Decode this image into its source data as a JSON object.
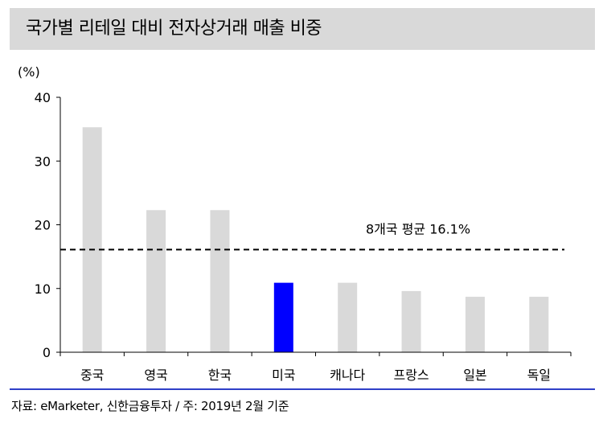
{
  "title": "국가별 리테일 대비 전자상거래 매출 비중",
  "source": "자료: eMarketer, 신한금융투자 / 주: 2019년 2월 기준",
  "chart_data": {
    "type": "bar",
    "unit_label": "(%)",
    "categories": [
      "중국",
      "영국",
      "한국",
      "미국",
      "캐나다",
      "프랑스",
      "일본",
      "독일"
    ],
    "values": [
      35.3,
      22.3,
      22.3,
      10.9,
      10.9,
      9.6,
      8.7,
      8.7
    ],
    "ylim": [
      0,
      40
    ],
    "yticks": [
      0,
      10,
      20,
      30,
      40
    ],
    "reference_line": {
      "value": 16.1,
      "label": "8개국 평균 16.1%"
    },
    "colors": {
      "default": "#d9d9d9",
      "highlight": "#0000ff",
      "highlight_category": "미국"
    }
  }
}
